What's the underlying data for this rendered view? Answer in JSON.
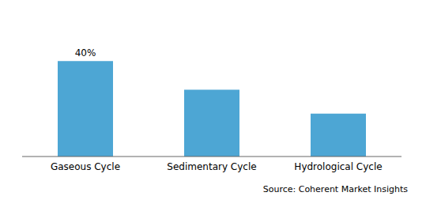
{
  "chart_data": {
    "type": "bar",
    "categories": [
      "Gaseous Cycle",
      "Sedimentary Cycle",
      "Hydrological Cycle"
    ],
    "values": [
      40,
      28,
      18
    ],
    "color": "#4da6d4",
    "ylim": [
      0,
      55
    ],
    "tick_labels": "x",
    "grid": false,
    "annotations": [
      {
        "text": "40%",
        "x": "Gaseous Cycle",
        "y": 40
      },
      {
        "text": "Source: Coherent Market Insights"
      }
    ]
  }
}
